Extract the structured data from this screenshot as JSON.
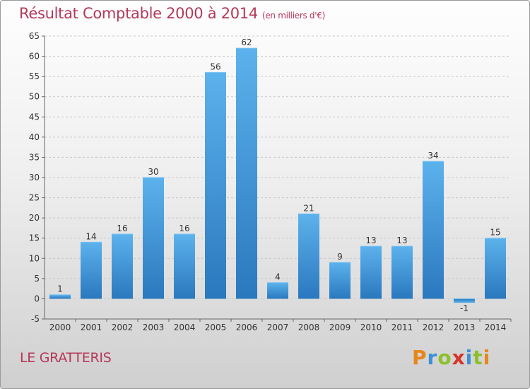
{
  "header": {
    "title": "Résultat Comptable 2000 à 2014",
    "subtitle": "(en milliers d'€)"
  },
  "footer": {
    "place": "LE GRATTERIS",
    "brand": [
      "P",
      "r",
      "o",
      "x",
      "i",
      "t",
      "i"
    ]
  },
  "chart_data": {
    "type": "bar",
    "title": "Résultat Comptable 2000 à 2014",
    "subtitle": "(en milliers d'€)",
    "xlabel": "",
    "ylabel": "",
    "categories": [
      "2000",
      "2001",
      "2002",
      "2003",
      "2004",
      "2005",
      "2006",
      "2007",
      "2008",
      "2009",
      "2010",
      "2011",
      "2012",
      "2013",
      "2014"
    ],
    "values": [
      1,
      14,
      16,
      30,
      16,
      56,
      62,
      4,
      21,
      9,
      13,
      13,
      34,
      -1,
      15
    ],
    "ylim": [
      -5,
      65
    ],
    "yticks": [
      -5,
      0,
      5,
      10,
      15,
      20,
      25,
      30,
      35,
      40,
      45,
      50,
      55,
      60,
      65
    ],
    "grid": "horizontal-dashed",
    "color": "#3d8fd4"
  }
}
